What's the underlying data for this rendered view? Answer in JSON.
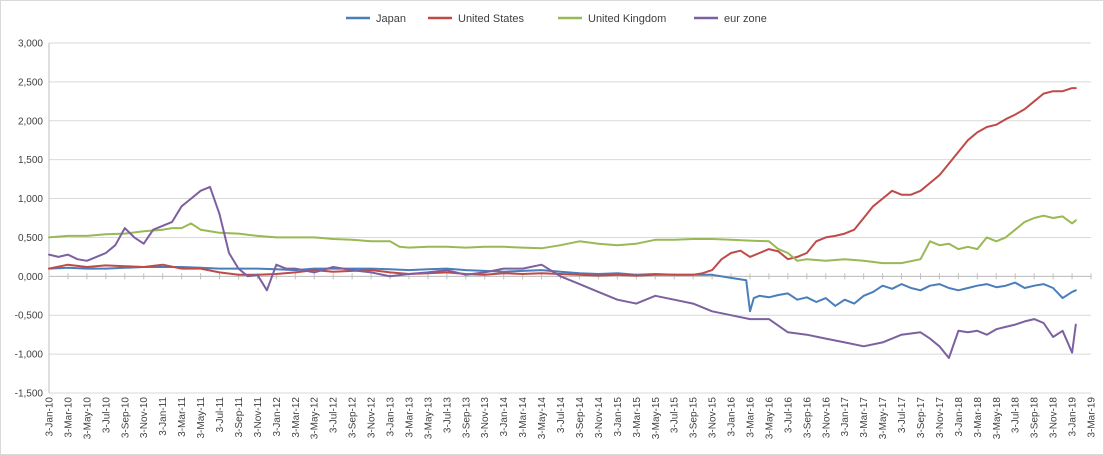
{
  "chart_data": {
    "type": "line",
    "title": "",
    "xlabel": "",
    "ylabel": "",
    "ylim": [
      -1.5,
      3.0
    ],
    "y_ticks": [
      -1.5,
      -1.0,
      -0.5,
      0.0,
      0.5,
      1.0,
      1.5,
      2.0,
      2.5,
      3.0
    ],
    "y_tick_labels": [
      "-1,500",
      "-1,000",
      "-0,500",
      "0,000",
      "0,500",
      "1,000",
      "1,500",
      "2,000",
      "2,500",
      "3,000"
    ],
    "x_tick_labels": [
      "3-Jan-10",
      "3-Mar-10",
      "3-May-10",
      "3-Jul-10",
      "3-Sep-10",
      "3-Nov-10",
      "3-Jan-11",
      "3-Mar-11",
      "3-May-11",
      "3-Jul-11",
      "3-Sep-11",
      "3-Nov-11",
      "3-Jan-12",
      "3-Mar-12",
      "3-May-12",
      "3-Jul-12",
      "3-Sep-12",
      "3-Nov-12",
      "3-Jan-13",
      "3-Mar-13",
      "3-May-13",
      "3-Jul-13",
      "3-Sep-13",
      "3-Nov-13",
      "3-Jan-14",
      "3-Mar-14",
      "3-May-14",
      "3-Jul-14",
      "3-Sep-14",
      "3-Nov-14",
      "3-Jan-15",
      "3-Mar-15",
      "3-May-15",
      "3-Jul-15",
      "3-Sep-15",
      "3-Nov-15",
      "3-Jan-16",
      "3-Mar-16",
      "3-May-16",
      "3-Jul-16",
      "3-Sep-16",
      "3-Nov-16",
      "3-Jan-17",
      "3-Mar-17",
      "3-May-17",
      "3-Jul-17",
      "3-Sep-17",
      "3-Nov-17",
      "3-Jan-18",
      "3-Mar-18",
      "3-May-18",
      "3-Jul-18",
      "3-Sep-18",
      "3-Nov-18",
      "3-Jan-19",
      "3-Mar-19"
    ],
    "x_domain": [
      0,
      55
    ],
    "grid": true,
    "legend_position": "top-center",
    "series": [
      {
        "name": "Japan",
        "color": "#4a7ebb",
        "x": [
          0,
          1,
          2,
          3,
          4,
          5,
          6,
          7,
          8,
          9,
          10,
          11,
          12,
          13,
          14,
          15,
          16,
          17,
          18,
          19,
          20,
          21,
          22,
          23,
          24,
          25,
          26,
          27,
          28,
          29,
          30,
          31,
          32,
          33,
          34,
          35,
          36,
          36.8,
          37,
          37.2,
          37.5,
          38,
          38.5,
          39,
          39.5,
          40,
          40.5,
          41,
          41.5,
          42,
          42.5,
          43,
          43.5,
          44,
          44.5,
          45,
          45.5,
          46,
          46.5,
          47,
          47.5,
          48,
          48.5,
          49,
          49.5,
          50,
          50.5,
          51,
          51.5,
          52,
          52.5,
          53,
          53.5,
          54,
          54.2
        ],
        "y": [
          0.1,
          0.11,
          0.1,
          0.1,
          0.11,
          0.12,
          0.12,
          0.12,
          0.11,
          0.1,
          0.1,
          0.1,
          0.09,
          0.08,
          0.1,
          0.1,
          0.1,
          0.1,
          0.09,
          0.08,
          0.09,
          0.1,
          0.08,
          0.07,
          0.06,
          0.07,
          0.08,
          0.06,
          0.04,
          0.03,
          0.04,
          0.02,
          0.03,
          0.02,
          0.02,
          0.02,
          -0.02,
          -0.05,
          -0.45,
          -0.28,
          -0.25,
          -0.27,
          -0.24,
          -0.22,
          -0.3,
          -0.27,
          -0.33,
          -0.28,
          -0.38,
          -0.3,
          -0.35,
          -0.25,
          -0.2,
          -0.12,
          -0.16,
          -0.1,
          -0.15,
          -0.18,
          -0.12,
          -0.1,
          -0.15,
          -0.18,
          -0.15,
          -0.12,
          -0.1,
          -0.14,
          -0.12,
          -0.08,
          -0.15,
          -0.12,
          -0.1,
          -0.15,
          -0.28,
          -0.2,
          -0.18
        ]
      },
      {
        "name": "United States",
        "color": "#be4b48",
        "x": [
          0,
          1,
          2,
          3,
          4,
          5,
          6,
          7,
          8,
          9,
          10,
          11,
          12,
          13,
          14,
          15,
          16,
          17,
          18,
          19,
          20,
          21,
          22,
          23,
          24,
          25,
          26,
          27,
          28,
          29,
          30,
          31,
          32,
          33,
          34,
          34.5,
          35,
          35.5,
          36,
          36.5,
          37,
          37.5,
          38,
          38.5,
          39,
          39.5,
          40,
          40.5,
          41,
          41.5,
          42,
          42.5,
          43,
          43.5,
          44,
          44.5,
          45,
          45.5,
          46,
          46.5,
          47,
          47.5,
          48,
          48.5,
          49,
          49.5,
          50,
          50.5,
          51,
          51.5,
          52,
          52.5,
          53,
          53.5,
          54,
          54.2
        ],
        "y": [
          0.1,
          0.15,
          0.12,
          0.14,
          0.13,
          0.12,
          0.15,
          0.1,
          0.1,
          0.05,
          0.02,
          0.02,
          0.03,
          0.05,
          0.08,
          0.06,
          0.07,
          0.08,
          0.05,
          0.03,
          0.04,
          0.05,
          0.03,
          0.02,
          0.04,
          0.03,
          0.04,
          0.03,
          0.02,
          0.01,
          0.02,
          0.01,
          0.02,
          0.02,
          0.02,
          0.04,
          0.08,
          0.22,
          0.3,
          0.33,
          0.25,
          0.3,
          0.35,
          0.32,
          0.22,
          0.25,
          0.3,
          0.45,
          0.5,
          0.52,
          0.55,
          0.6,
          0.75,
          0.9,
          1.0,
          1.1,
          1.05,
          1.05,
          1.1,
          1.2,
          1.3,
          1.45,
          1.6,
          1.75,
          1.85,
          1.92,
          1.95,
          2.02,
          2.08,
          2.15,
          2.25,
          2.35,
          2.38,
          2.38,
          2.42,
          2.42
        ]
      },
      {
        "name": "United Kingdom",
        "color": "#98b954",
        "x": [
          0,
          1,
          2,
          3,
          4,
          5,
          6,
          6.5,
          7,
          7.5,
          8,
          8.5,
          9,
          10,
          11,
          12,
          13,
          14,
          15,
          16,
          17,
          18,
          18.5,
          19,
          20,
          21,
          22,
          23,
          24,
          25,
          26,
          27,
          28,
          29,
          30,
          31,
          32,
          33,
          34,
          35,
          36,
          37,
          38,
          38.5,
          39,
          39.5,
          40,
          41,
          42,
          43,
          44,
          45,
          46,
          46.5,
          47,
          47.5,
          48,
          48.5,
          49,
          49.5,
          50,
          50.5,
          51,
          51.5,
          52,
          52.5,
          53,
          53.5,
          54,
          54.2
        ],
        "y": [
          0.5,
          0.52,
          0.52,
          0.54,
          0.55,
          0.58,
          0.6,
          0.62,
          0.62,
          0.68,
          0.6,
          0.58,
          0.56,
          0.55,
          0.52,
          0.5,
          0.5,
          0.5,
          0.48,
          0.47,
          0.45,
          0.45,
          0.38,
          0.37,
          0.38,
          0.38,
          0.37,
          0.38,
          0.38,
          0.37,
          0.36,
          0.4,
          0.45,
          0.42,
          0.4,
          0.42,
          0.47,
          0.47,
          0.48,
          0.48,
          0.47,
          0.46,
          0.45,
          0.35,
          0.3,
          0.2,
          0.22,
          0.2,
          0.22,
          0.2,
          0.17,
          0.17,
          0.22,
          0.45,
          0.4,
          0.42,
          0.35,
          0.38,
          0.35,
          0.5,
          0.45,
          0.5,
          0.6,
          0.7,
          0.75,
          0.78,
          0.75,
          0.77,
          0.68,
          0.72
        ]
      },
      {
        "name": "eur zone",
        "color": "#7d60a0",
        "x": [
          0,
          0.5,
          1,
          1.5,
          2,
          2.5,
          3,
          3.5,
          4,
          4.5,
          5,
          5.5,
          6,
          6.5,
          7,
          7.5,
          8,
          8.5,
          9,
          9.3,
          9.5,
          10,
          10.5,
          11,
          11.5,
          12,
          12.5,
          13,
          14,
          15,
          16,
          17,
          18,
          19,
          20,
          21,
          22,
          23,
          24,
          25,
          26,
          27,
          28,
          29,
          30,
          31,
          32,
          33,
          34,
          35,
          36,
          37,
          38,
          39,
          40,
          41,
          42,
          43,
          44,
          45,
          46,
          46.5,
          47,
          47.5,
          48,
          48.5,
          49,
          49.5,
          50,
          50.5,
          51,
          51.5,
          52,
          52.5,
          53,
          53.5,
          54,
          54.2
        ],
        "y": [
          0.28,
          0.25,
          0.28,
          0.22,
          0.2,
          0.25,
          0.3,
          0.4,
          0.62,
          0.5,
          0.42,
          0.6,
          0.65,
          0.7,
          0.9,
          1.0,
          1.1,
          1.15,
          0.8,
          0.5,
          0.3,
          0.1,
          0.0,
          0.02,
          -0.18,
          0.15,
          0.1,
          0.1,
          0.05,
          0.12,
          0.08,
          0.05,
          0.0,
          0.03,
          0.05,
          0.08,
          0.02,
          0.05,
          0.1,
          0.1,
          0.15,
          0.0,
          -0.1,
          -0.2,
          -0.3,
          -0.35,
          -0.25,
          -0.3,
          -0.35,
          -0.45,
          -0.5,
          -0.55,
          -0.55,
          -0.72,
          -0.75,
          -0.8,
          -0.85,
          -0.9,
          -0.85,
          -0.75,
          -0.72,
          -0.8,
          -0.9,
          -1.05,
          -0.7,
          -0.72,
          -0.7,
          -0.75,
          -0.68,
          -0.65,
          -0.62,
          -0.58,
          -0.55,
          -0.6,
          -0.78,
          -0.7,
          -0.98,
          -0.62
        ]
      }
    ]
  }
}
